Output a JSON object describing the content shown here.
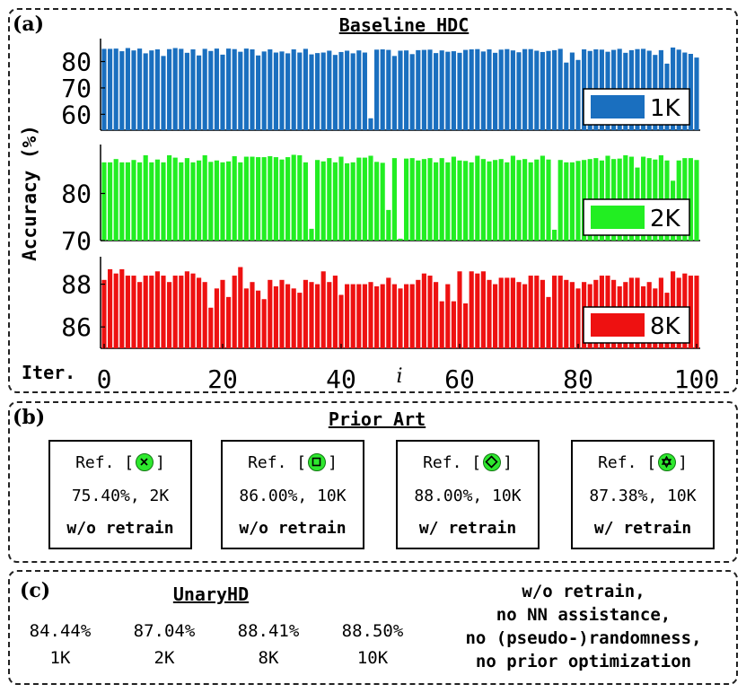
{
  "panel_a": {
    "label": "(a)",
    "title": "Baseline HDC",
    "ylabel": "Accuracy (%)",
    "xlabel_prefix": "Iter.",
    "xlabel_var": "i",
    "colors": {
      "1K": "#1a6fbf",
      "2K": "#22ee22",
      "8K": "#ee1111"
    }
  },
  "chart_data": [
    {
      "type": "bar",
      "title": "Baseline HDC",
      "series": [
        {
          "name": "1K",
          "values": [
            84.8,
            84.8,
            84.9,
            83.9,
            85.1,
            84.2,
            84.9,
            83.1,
            84.2,
            84.6,
            82.1,
            84.7,
            85.1,
            84.8,
            83.3,
            84.6,
            82.3,
            84.8,
            84.0,
            84.9,
            82.6,
            84.9,
            84.7,
            83.7,
            84.9,
            84.6,
            82.3,
            83.8,
            84.6,
            83.4,
            83.8,
            83.1,
            84.6,
            83.4,
            84.8,
            82.7,
            83.2,
            83.4,
            84.1,
            82.5,
            83.6,
            84.1,
            83.1,
            84.2,
            83.4,
            58.5,
            84.5,
            84.6,
            84.4,
            82.1,
            84.1,
            84.2,
            82.8,
            84.3,
            84.4,
            84.5,
            83.2,
            84.2,
            83.7,
            83.9,
            83.3,
            84.4,
            84.6,
            84.7,
            83.8,
            84.6,
            83.3,
            84.5,
            84.7,
            84.2,
            83.5,
            84.7,
            84.7,
            84.1,
            83.6,
            84.0,
            84.3,
            84.8,
            79.6,
            83.4,
            80.6,
            84.6,
            84.0,
            84.6,
            84.5,
            83.7,
            84.4,
            84.8,
            83.3,
            84.3,
            84.7,
            84.8,
            84.1,
            82.5,
            84.3,
            79.2,
            85.3,
            84.5,
            83.4,
            82.9,
            81.5
          ]
        },
        {
          "name": "2K",
          "values": [
            86.6,
            86.6,
            87.3,
            86.6,
            86.6,
            87.1,
            86.6,
            88.1,
            86.6,
            87.2,
            86.6,
            88.1,
            87.6,
            86.6,
            87.5,
            86.6,
            87.0,
            88.1,
            86.7,
            87.0,
            86.6,
            86.8,
            87.9,
            86.6,
            87.8,
            87.8,
            87.7,
            87.7,
            87.9,
            87.7,
            87.2,
            87.7,
            88.2,
            88.1,
            86.6,
            72.5,
            87.1,
            86.8,
            87.5,
            86.6,
            87.8,
            86.4,
            86.6,
            87.6,
            87.6,
            88.0,
            86.7,
            86.5,
            76.5,
            87.5,
            70.4,
            87.4,
            87.5,
            87.0,
            87.3,
            87.5,
            86.6,
            87.5,
            86.6,
            87.8,
            87.0,
            86.9,
            86.6,
            88.0,
            87.3,
            86.8,
            87.1,
            87.3,
            86.6,
            88.0,
            87.1,
            87.3,
            86.6,
            87.2,
            88.0,
            87.2,
            72.3,
            87.1,
            86.6,
            86.6,
            86.9,
            87.1,
            87.3,
            87.5,
            87.0,
            88.0,
            87.3,
            87.4,
            88.1,
            87.8,
            85.5,
            87.8,
            87.5,
            87.2,
            88.1,
            87.0,
            82.7,
            87.0,
            87.5,
            87.5,
            87.1
          ]
        },
        {
          "name": "8K",
          "values": [
            88.2,
            88.7,
            88.5,
            88.7,
            88.4,
            88.4,
            88.1,
            88.4,
            88.4,
            88.6,
            88.4,
            88.1,
            88.4,
            88.4,
            88.6,
            88.5,
            88.3,
            88.1,
            86.9,
            87.8,
            88.2,
            87.4,
            88.4,
            88.8,
            87.8,
            88.1,
            87.7,
            87.3,
            88.2,
            87.9,
            88.2,
            88.0,
            87.8,
            87.6,
            88.2,
            88.1,
            88.0,
            88.6,
            88.1,
            88.4,
            87.5,
            88.0,
            88.0,
            88.0,
            88.0,
            88.1,
            87.9,
            88.0,
            88.3,
            88.0,
            87.8,
            88.0,
            88.0,
            88.2,
            88.5,
            88.4,
            88.1,
            87.2,
            88.0,
            87.2,
            88.6,
            87.1,
            88.6,
            88.5,
            88.6,
            88.2,
            88.0,
            88.3,
            88.3,
            88.3,
            88.1,
            88.0,
            88.4,
            88.4,
            88.2,
            87.4,
            88.4,
            88.4,
            88.2,
            88.1,
            87.8,
            88.1,
            88.0,
            88.2,
            88.4,
            88.4,
            88.2,
            87.9,
            88.1,
            88.3,
            88.3,
            87.9,
            88.1,
            87.8,
            88.3,
            87.6,
            88.6,
            88.3,
            88.5,
            88.4,
            88.4
          ]
        }
      ],
      "x": [
        0,
        1,
        2,
        3,
        4,
        5,
        6,
        7,
        8,
        9,
        10,
        11,
        12,
        13,
        14,
        15,
        16,
        17,
        18,
        19,
        20,
        21,
        22,
        23,
        24,
        25,
        26,
        27,
        28,
        29,
        30,
        31,
        32,
        33,
        34,
        35,
        36,
        37,
        38,
        39,
        40,
        41,
        42,
        43,
        44,
        45,
        46,
        47,
        48,
        49,
        50,
        51,
        52,
        53,
        54,
        55,
        56,
        57,
        58,
        59,
        60,
        61,
        62,
        63,
        64,
        65,
        66,
        67,
        68,
        69,
        70,
        71,
        72,
        73,
        74,
        75,
        76,
        77,
        78,
        79,
        80,
        81,
        82,
        83,
        84,
        85,
        86,
        87,
        88,
        89,
        90,
        91,
        92,
        93,
        94,
        95,
        96,
        97,
        98,
        99,
        100
      ],
      "xticks": [
        0,
        20,
        40,
        60,
        80,
        100
      ],
      "subplots": [
        {
          "series": "1K",
          "ylim": [
            54,
            88
          ],
          "yticks": [
            60,
            70,
            80
          ]
        },
        {
          "series": "2K",
          "ylim": [
            70,
            90
          ],
          "yticks": [
            70,
            80
          ]
        },
        {
          "series": "8K",
          "ylim": [
            85,
            89.2
          ],
          "yticks": [
            86,
            88
          ]
        }
      ]
    }
  ],
  "panel_b": {
    "label": "(b)",
    "title": "Prior Art",
    "refs": [
      {
        "ref": "Ref. [",
        "ref_end": "]",
        "marker": "x-icon",
        "value": "75.40%, 2K",
        "note": "w/o retrain"
      },
      {
        "ref": "Ref. [",
        "ref_end": "]",
        "marker": "square-icon",
        "value": "86.00%, 10K",
        "note": "w/o retrain"
      },
      {
        "ref": "Ref. [",
        "ref_end": "]",
        "marker": "diamond-icon",
        "value": "88.00%, 10K",
        "note": "w/ retrain"
      },
      {
        "ref": "Ref. [",
        "ref_end": "]",
        "marker": "hexagram-icon",
        "value": "87.38%, 10K",
        "note": "w/ retrain"
      }
    ],
    "marker_color": "#2ee82e"
  },
  "panel_c": {
    "label": "(c)",
    "title": "UnaryHD",
    "results": [
      {
        "acc": "84.44%",
        "dim": "1K"
      },
      {
        "acc": "87.04%",
        "dim": "2K"
      },
      {
        "acc": "88.41%",
        "dim": "8K"
      },
      {
        "acc": "88.50%",
        "dim": "10K"
      }
    ],
    "notes": [
      "w/o retrain,",
      "no NN assistance,",
      "no (pseudo-)randomness,",
      "no prior optimization"
    ]
  }
}
